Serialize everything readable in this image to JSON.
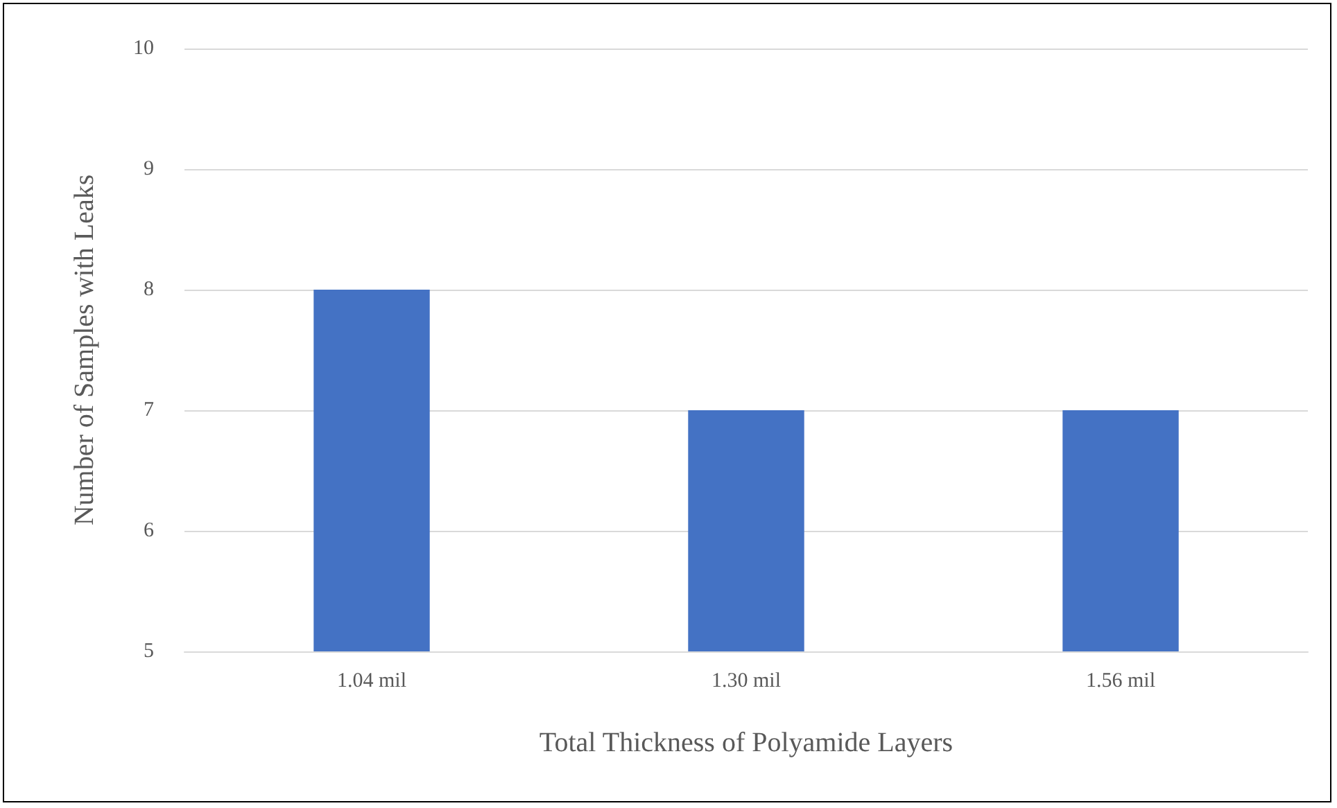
{
  "chart_data": {
    "type": "bar",
    "xlabel": "Total Thickness of Polyamide Layers",
    "ylabel": "Number of Samples with Leaks",
    "categories": [
      "1.04 mil",
      "1.30 mil",
      "1.56 mil"
    ],
    "values": [
      8,
      7,
      7
    ],
    "color": "#4472c4",
    "ylim": [
      5,
      10
    ],
    "yticks": [
      5,
      6,
      7,
      8,
      9,
      10
    ],
    "grid": "y"
  }
}
